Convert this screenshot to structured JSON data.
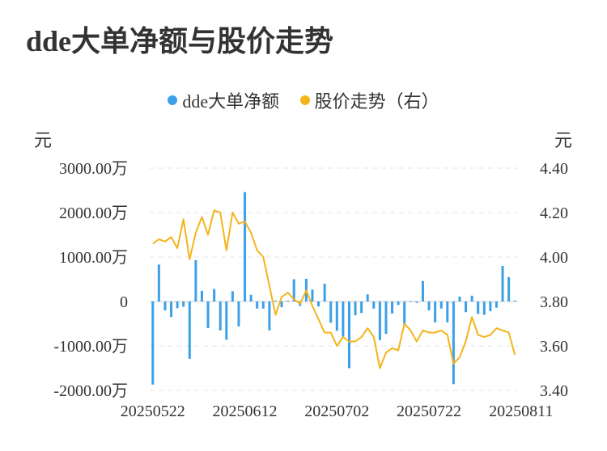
{
  "title": "dde大单净额与股价走势",
  "legend": [
    {
      "label": "dde大单净额",
      "color": "#3ba0e8"
    },
    {
      "label": "股价走势（右）",
      "color": "#f4b41a"
    }
  ],
  "y_left_unit": "元",
  "y_right_unit": "元",
  "chart_data": {
    "type": "bar+line",
    "title": "dde大单净额与股价走势",
    "y_left": {
      "unit": "元",
      "ticks": [
        "3000.00万",
        "2000.00万",
        "1000.00万",
        "0",
        "-1000.00万",
        "-2000.00万"
      ],
      "values": [
        3000,
        2000,
        1000,
        0,
        -1000,
        -2000
      ],
      "ylim": [
        -2000,
        3000
      ]
    },
    "y_right": {
      "unit": "元",
      "ticks": [
        "4.40",
        "4.20",
        "4.00",
        "3.80",
        "3.60",
        "3.40"
      ],
      "values": [
        4.4,
        4.2,
        4.0,
        3.8,
        3.6,
        3.4
      ],
      "ylim": [
        3.4,
        4.4
      ]
    },
    "x_tick_labels": [
      "20250522",
      "20250612",
      "20250702",
      "20250722",
      "20250811"
    ],
    "x_tick_index": [
      0,
      15,
      30,
      45,
      60
    ],
    "series": [
      {
        "name": "dde大单净额",
        "type": "bar",
        "axis": "left",
        "values": [
          -1870,
          830,
          -200,
          -350,
          -150,
          -120,
          -1290,
          930,
          240,
          -600,
          280,
          -650,
          -860,
          230,
          -560,
          2460,
          150,
          -160,
          -160,
          -650,
          20,
          -130,
          20,
          500,
          -100,
          510,
          270,
          -110,
          400,
          -480,
          -660,
          -790,
          -1500,
          -310,
          -260,
          160,
          -160,
          -870,
          -730,
          -270,
          -80,
          -520,
          10,
          -30,
          460,
          -200,
          -470,
          -160,
          -470,
          -1860,
          110,
          -240,
          130,
          -280,
          -300,
          -220,
          -140,
          800,
          550,
          20
        ]
      },
      {
        "name": "股价走势（右）",
        "type": "line",
        "axis": "right",
        "values": [
          4.06,
          4.08,
          4.07,
          4.09,
          4.04,
          4.17,
          3.99,
          4.11,
          4.18,
          4.1,
          4.21,
          4.2,
          4.03,
          4.2,
          4.15,
          4.16,
          4.11,
          4.03,
          4.0,
          3.87,
          3.74,
          3.82,
          3.84,
          3.81,
          3.79,
          3.85,
          3.78,
          3.72,
          3.66,
          3.66,
          3.6,
          3.64,
          3.62,
          3.62,
          3.64,
          3.68,
          3.64,
          3.5,
          3.57,
          3.59,
          3.58,
          3.7,
          3.67,
          3.62,
          3.67,
          3.66,
          3.66,
          3.67,
          3.65,
          3.52,
          3.55,
          3.62,
          3.73,
          3.65,
          3.64,
          3.65,
          3.68,
          3.67,
          3.66,
          3.56
        ]
      }
    ]
  }
}
